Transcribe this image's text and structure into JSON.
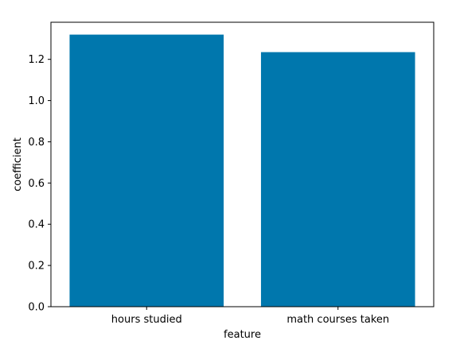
{
  "chart_data": {
    "type": "bar",
    "categories": [
      "hours studied",
      "math courses taken"
    ],
    "values": [
      1.32,
      1.235
    ],
    "title": "",
    "xlabel": "feature",
    "ylabel": "coefficient",
    "ylim": [
      0,
      1.38
    ],
    "yticks": [
      0.0,
      0.2,
      0.4,
      0.6,
      0.8,
      1.0,
      1.2
    ],
    "ytick_labels": [
      "0.0",
      "0.2",
      "0.4",
      "0.6",
      "0.8",
      "1.0",
      "1.2"
    ],
    "grid": false,
    "legend": "none",
    "colors": {
      "bar": "#0077ad",
      "axes": "#000000",
      "background": "#ffffff"
    }
  }
}
